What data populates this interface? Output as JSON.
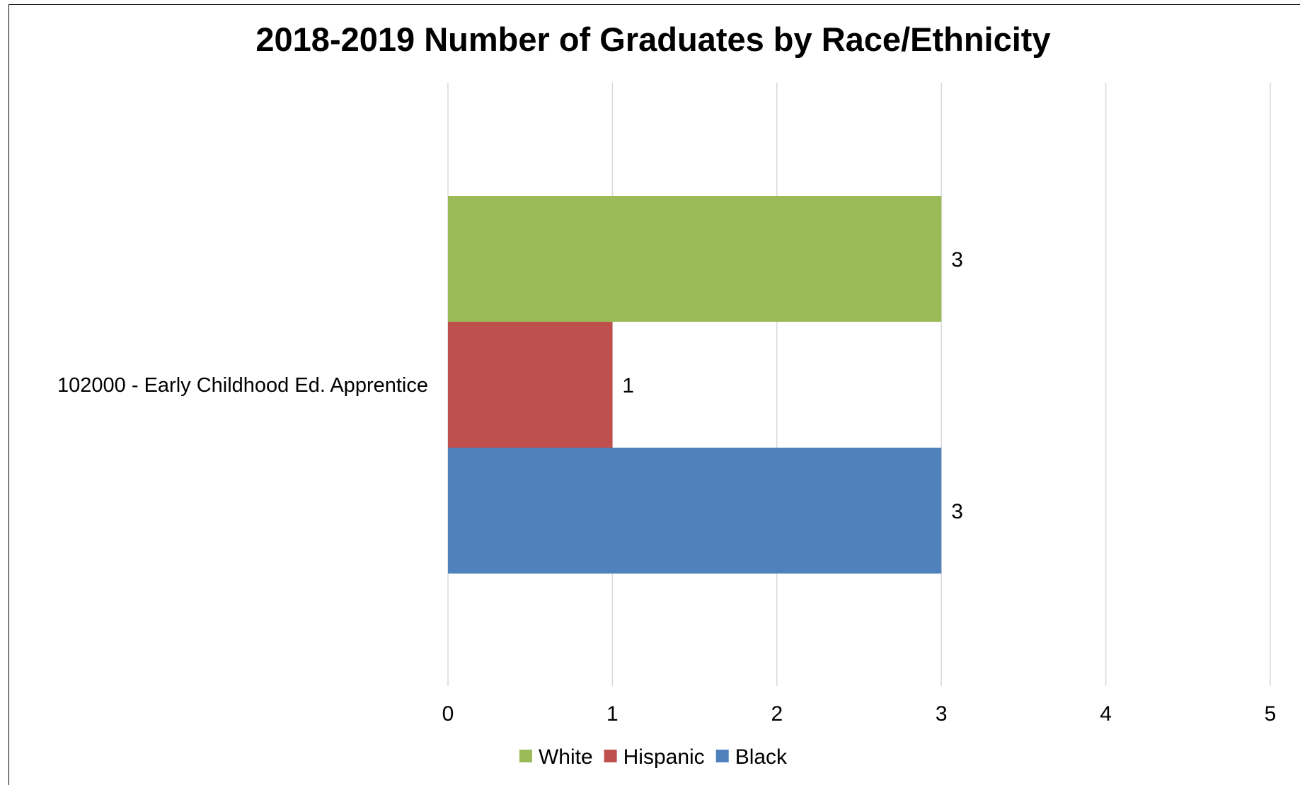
{
  "chart_data": {
    "type": "bar",
    "orientation": "horizontal",
    "title": "2018-2019 Number of Graduates by Race/Ethnicity",
    "categories": [
      "102000 - Early Childhood Ed. Apprentice"
    ],
    "series": [
      {
        "name": "White",
        "values": [
          3
        ],
        "color": "#9BBB59"
      },
      {
        "name": "Hispanic",
        "values": [
          1
        ],
        "color": "#C0504D"
      },
      {
        "name": "Black",
        "values": [
          3
        ],
        "color": "#4F81BD"
      }
    ],
    "xlim": [
      0,
      5
    ],
    "xticks": [
      "0",
      "1",
      "2",
      "3",
      "4",
      "5"
    ],
    "xlabel": "",
    "ylabel": "",
    "grid": true,
    "gridline_color": "#D9D9D9",
    "data_labels": true,
    "legend_position": "bottom"
  }
}
